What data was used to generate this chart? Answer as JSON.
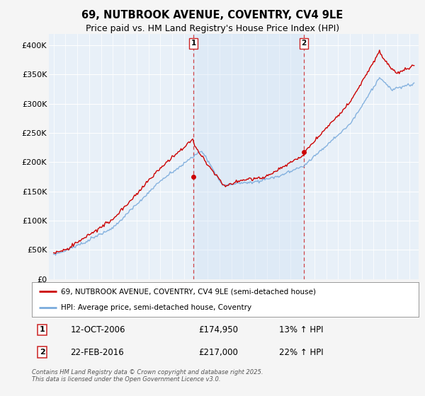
{
  "title": "69, NUTBROOK AVENUE, COVENTRY, CV4 9LE",
  "subtitle": "Price paid vs. HM Land Registry's House Price Index (HPI)",
  "ylim": [
    0,
    420000
  ],
  "yticks": [
    0,
    50000,
    100000,
    150000,
    200000,
    250000,
    300000,
    350000,
    400000
  ],
  "ytick_labels": [
    "£0",
    "£50K",
    "£100K",
    "£150K",
    "£200K",
    "£250K",
    "£300K",
    "£350K",
    "£400K"
  ],
  "xlim_left": 1994.6,
  "xlim_right": 2025.8,
  "sale1_date": 2006.79,
  "sale1_price": 174950,
  "sale2_date": 2016.13,
  "sale2_price": 217000,
  "hpi_color": "#7aabdc",
  "price_color": "#cc0000",
  "vline_color": "#cc0000",
  "span_color": "#ddeeff",
  "plot_bg_color": "#e8f0f8",
  "fig_bg_color": "#f5f5f5",
  "legend_border_color": "#aaaaaa",
  "legend1_text": "69, NUTBROOK AVENUE, COVENTRY, CV4 9LE (semi-detached house)",
  "legend2_text": "HPI: Average price, semi-detached house, Coventry",
  "annotation1": "12-OCT-2006",
  "annotation1_price": "£174,950",
  "annotation1_hpi": "13% ↑ HPI",
  "annotation2": "22-FEB-2016",
  "annotation2_price": "£217,000",
  "annotation2_hpi": "22% ↑ HPI",
  "footer": "Contains HM Land Registry data © Crown copyright and database right 2025.\nThis data is licensed under the Open Government Licence v3.0.",
  "title_fontsize": 10.5,
  "subtitle_fontsize": 9
}
